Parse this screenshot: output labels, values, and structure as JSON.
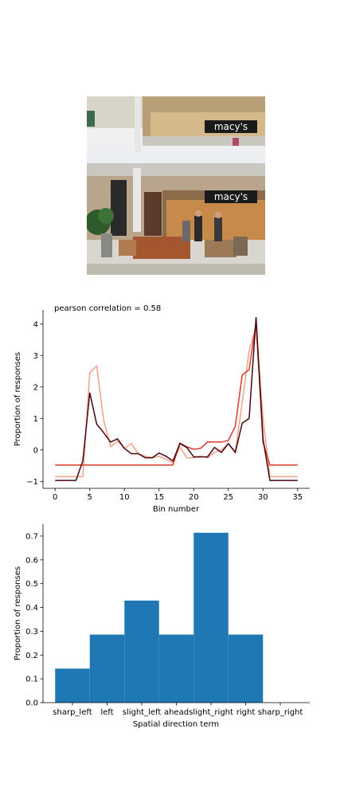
{
  "photo": {
    "description": "Indoor shopping mall atrium with two floors of Macy's storefronts, seating area with leather chairs, potted plant and shoppers",
    "sign_text": "macy's",
    "icon": "photo-icon"
  },
  "chart_data": [
    {
      "type": "line",
      "annotation": "pearson correlation = 0.58",
      "xlabel": "Bin number",
      "ylabel": "Proportion of responses",
      "xlim": [
        -1.75,
        36.75
      ],
      "ylim": [
        -1.22,
        4.45
      ],
      "xticks": [
        0,
        5,
        10,
        15,
        20,
        25,
        30,
        35
      ],
      "yticks": [
        -1,
        0,
        1,
        2,
        3,
        4
      ],
      "grid": false,
      "x": [
        0,
        1,
        2,
        3,
        4,
        5,
        6,
        7,
        8,
        9,
        10,
        11,
        12,
        13,
        14,
        15,
        16,
        17,
        18,
        19,
        20,
        21,
        22,
        23,
        24,
        25,
        26,
        27,
        28,
        29,
        30,
        31,
        32,
        33,
        34,
        35
      ],
      "series": [
        {
          "color": "#f4a082",
          "values": [
            -0.85,
            -0.85,
            -0.85,
            -0.85,
            -0.85,
            2.45,
            2.67,
            0.95,
            0.1,
            0.28,
            0.05,
            0.2,
            -0.12,
            -0.2,
            -0.25,
            -0.2,
            -0.3,
            -0.4,
            0.1,
            -0.25,
            -0.25,
            -0.2,
            -0.25,
            -0.08,
            0.0,
            0.2,
            -0.05,
            1.5,
            3.15,
            3.9,
            1.0,
            -0.85,
            -0.85,
            -0.85,
            -0.85,
            -0.85
          ]
        },
        {
          "color": "#d93a2a",
          "values": [
            -0.48,
            -0.48,
            -0.48,
            -0.48,
            -0.48,
            -0.48,
            -0.48,
            -0.48,
            -0.48,
            -0.48,
            -0.48,
            -0.48,
            -0.48,
            -0.48,
            -0.48,
            -0.48,
            -0.48,
            -0.48,
            0.22,
            0.1,
            0.02,
            0.05,
            0.25,
            0.25,
            0.25,
            0.3,
            0.75,
            2.38,
            2.55,
            4.05,
            0.25,
            -0.48,
            -0.48,
            -0.48,
            -0.48,
            -0.48
          ]
        },
        {
          "color": "#4a0510",
          "values": [
            -0.97,
            -0.97,
            -0.97,
            -0.97,
            -0.35,
            1.82,
            0.82,
            0.55,
            0.25,
            0.35,
            0.05,
            -0.12,
            -0.12,
            -0.25,
            -0.25,
            -0.1,
            -0.2,
            -0.35,
            0.2,
            0.08,
            -0.22,
            -0.22,
            -0.22,
            0.08,
            -0.08,
            0.2,
            -0.08,
            0.85,
            1.0,
            4.22,
            0.35,
            -0.97,
            -0.97,
            -0.97,
            -0.97,
            -0.97
          ]
        }
      ]
    },
    {
      "type": "bar",
      "xlabel": "Spatial direction term",
      "ylabel": "Proportion of responses",
      "ylim": [
        0,
        0.75
      ],
      "yticks": [
        0.0,
        0.1,
        0.2,
        0.3,
        0.4,
        0.5,
        0.6,
        0.7
      ],
      "grid": false,
      "categories": [
        "sharp_left",
        "left",
        "slight_left",
        "ahead",
        "slight_right",
        "right",
        "sharp_right"
      ],
      "values": [
        0.143,
        0.286,
        0.429,
        0.286,
        0.714,
        0.286,
        0.0
      ],
      "color": "#1f77b4"
    }
  ]
}
